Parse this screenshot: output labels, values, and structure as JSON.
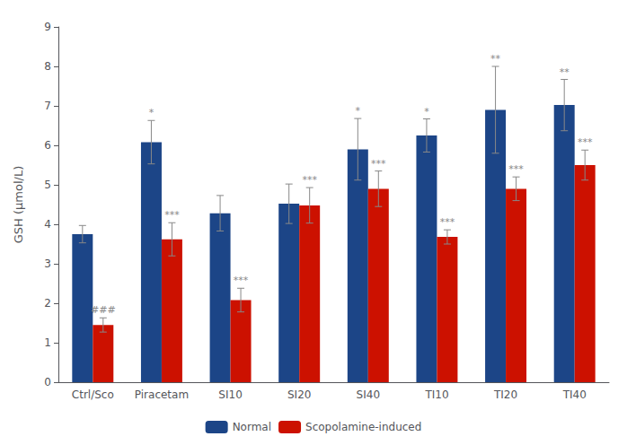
{
  "chart_data": {
    "type": "bar",
    "categories": [
      "Ctrl/Sco",
      "Piracetam",
      "SI10",
      "SI20",
      "SI40",
      "TI10",
      "TI20",
      "TI40"
    ],
    "series": [
      {
        "name": "Normal",
        "color": "#1c4587",
        "values": [
          3.75,
          6.08,
          4.28,
          4.52,
          5.9,
          6.25,
          6.9,
          7.02
        ],
        "errors": [
          0.22,
          0.55,
          0.45,
          0.5,
          0.78,
          0.42,
          1.1,
          0.65
        ],
        "annotations": [
          null,
          "*",
          null,
          null,
          "*",
          "*",
          "**",
          "**"
        ]
      },
      {
        "name": "Scopolamine-induced",
        "color": "#cc1100",
        "values": [
          1.45,
          3.62,
          2.08,
          4.48,
          4.9,
          3.68,
          4.9,
          5.5
        ],
        "errors": [
          0.18,
          0.42,
          0.3,
          0.45,
          0.45,
          0.18,
          0.3,
          0.38
        ],
        "annotations": [
          "###",
          "***",
          "***",
          "***",
          "***",
          "***",
          "***",
          "***"
        ]
      }
    ],
    "ylabel": "GSH (μmol/L)",
    "ylim": [
      0,
      9
    ],
    "yticks": [
      0,
      1,
      2,
      3,
      4,
      5,
      6,
      7,
      8,
      9
    ],
    "grid": false,
    "legend": "bottom"
  }
}
